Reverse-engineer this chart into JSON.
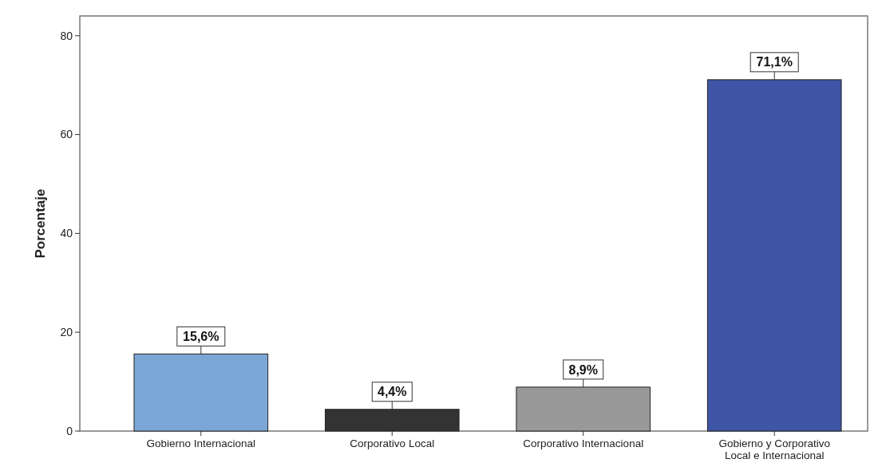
{
  "chart_data": {
    "type": "bar",
    "ylabel": "Porcentaje",
    "categories": [
      "Gobierno Internacional",
      "Corporativo Local",
      "Corporativo Internacional",
      "Gobierno y Corporativo Local e Internacional"
    ],
    "values": [
      15.6,
      4.4,
      8.9,
      71.1
    ],
    "colors": [
      "#7ba7d6",
      "#333333",
      "#999999",
      "#3f55a6"
    ],
    "value_labels": [
      "15,6%",
      "4,4%",
      "8,9%",
      "71,1%"
    ],
    "ylim": [
      0,
      84
    ],
    "yticks": [
      0,
      20,
      40,
      60,
      80
    ],
    "grid": false
  }
}
